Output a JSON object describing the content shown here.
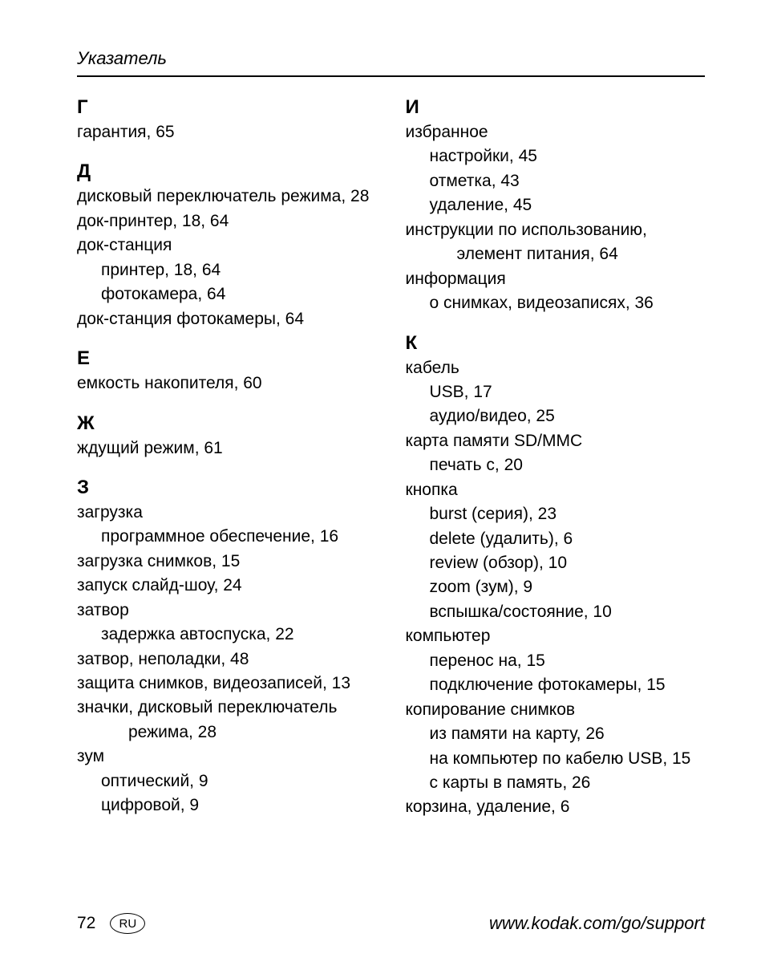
{
  "header": {
    "title": "Указатель"
  },
  "left": {
    "sections": [
      {
        "letter": "Г",
        "lines": [
          {
            "text": "гарантия, 65",
            "cls": "entry"
          }
        ]
      },
      {
        "letter": "Д",
        "lines": [
          {
            "text": "дисковый переключатель режима, 28",
            "cls": "entry"
          },
          {
            "text": "док-принтер, 18, 64",
            "cls": "entry"
          },
          {
            "text": "док-станция",
            "cls": "entry"
          },
          {
            "text": "принтер, 18, 64",
            "cls": "entry sub"
          },
          {
            "text": "фотокамера, 64",
            "cls": "entry sub"
          },
          {
            "text": "док-станция фотокамеры, 64",
            "cls": "entry"
          }
        ]
      },
      {
        "letter": "Е",
        "lines": [
          {
            "text": "емкость накопителя, 60",
            "cls": "entry"
          }
        ]
      },
      {
        "letter": "Ж",
        "lines": [
          {
            "text": "ждущий режим, 61",
            "cls": "entry"
          }
        ]
      },
      {
        "letter": "З",
        "lines": [
          {
            "text": "загрузка",
            "cls": "entry"
          },
          {
            "text": "программное обеспечение, 16",
            "cls": "entry sub"
          },
          {
            "text": "загрузка снимков, 15",
            "cls": "entry"
          },
          {
            "text": "запуск слайд-шоу, 24",
            "cls": "entry"
          },
          {
            "text": "затвор",
            "cls": "entry"
          },
          {
            "text": "задержка автоспуска, 22",
            "cls": "entry sub"
          },
          {
            "text": "затвор, неполадки, 48",
            "cls": "entry"
          },
          {
            "text": "защита снимков, видеозаписей, 13",
            "cls": "entry"
          },
          {
            "text": "значки, дисковый переключатель",
            "cls": "entry"
          },
          {
            "text": "режима, 28",
            "cls": "entry subsub"
          },
          {
            "text": "зум",
            "cls": "entry"
          },
          {
            "text": "оптический, 9",
            "cls": "entry sub"
          },
          {
            "text": "цифровой, 9",
            "cls": "entry sub"
          }
        ]
      }
    ]
  },
  "right": {
    "sections": [
      {
        "letter": "И",
        "lines": [
          {
            "text": "избранное",
            "cls": "entry"
          },
          {
            "text": "настройки, 45",
            "cls": "entry sub"
          },
          {
            "text": "отметка, 43",
            "cls": "entry sub"
          },
          {
            "text": "удаление, 45",
            "cls": "entry sub"
          },
          {
            "text": "инструкции по использованию,",
            "cls": "entry"
          },
          {
            "text": "элемент питания, 64",
            "cls": "entry subsub"
          },
          {
            "text": "информация",
            "cls": "entry"
          },
          {
            "text": "о снимках, видеозаписях, 36",
            "cls": "entry sub"
          }
        ]
      },
      {
        "letter": "К",
        "lines": [
          {
            "text": "кабель",
            "cls": "entry"
          },
          {
            "text": "USB, 17",
            "cls": "entry sub"
          },
          {
            "text": "аудио/видео, 25",
            "cls": "entry sub"
          },
          {
            "text": "карта памяти SD/MMC",
            "cls": "entry"
          },
          {
            "text": "печать с, 20",
            "cls": "entry sub"
          },
          {
            "text": "кнопка",
            "cls": "entry"
          },
          {
            "text": "burst (серия), 23",
            "cls": "entry sub"
          },
          {
            "text": "delete (удалить), 6",
            "cls": "entry sub"
          },
          {
            "text": "review (обзор), 10",
            "cls": "entry sub"
          },
          {
            "text": "zoom (зум), 9",
            "cls": "entry sub"
          },
          {
            "text": "вспышка/состояние, 10",
            "cls": "entry sub"
          },
          {
            "text": "компьютер",
            "cls": "entry"
          },
          {
            "text": "перенос на, 15",
            "cls": "entry sub"
          },
          {
            "text": "подключение фотокамеры, 15",
            "cls": "entry sub"
          },
          {
            "text": "копирование снимков",
            "cls": "entry"
          },
          {
            "text": "из памяти на карту, 26",
            "cls": "entry sub"
          },
          {
            "text": "на компьютер по кабелю USB, 15",
            "cls": "entry sub"
          },
          {
            "text": "с карты в память, 26",
            "cls": "entry sub"
          },
          {
            "text": "корзина, удаление, 6",
            "cls": "entry"
          }
        ]
      }
    ]
  },
  "footer": {
    "page": "72",
    "badge": "RU",
    "url": "www.kodak.com/go/support"
  }
}
